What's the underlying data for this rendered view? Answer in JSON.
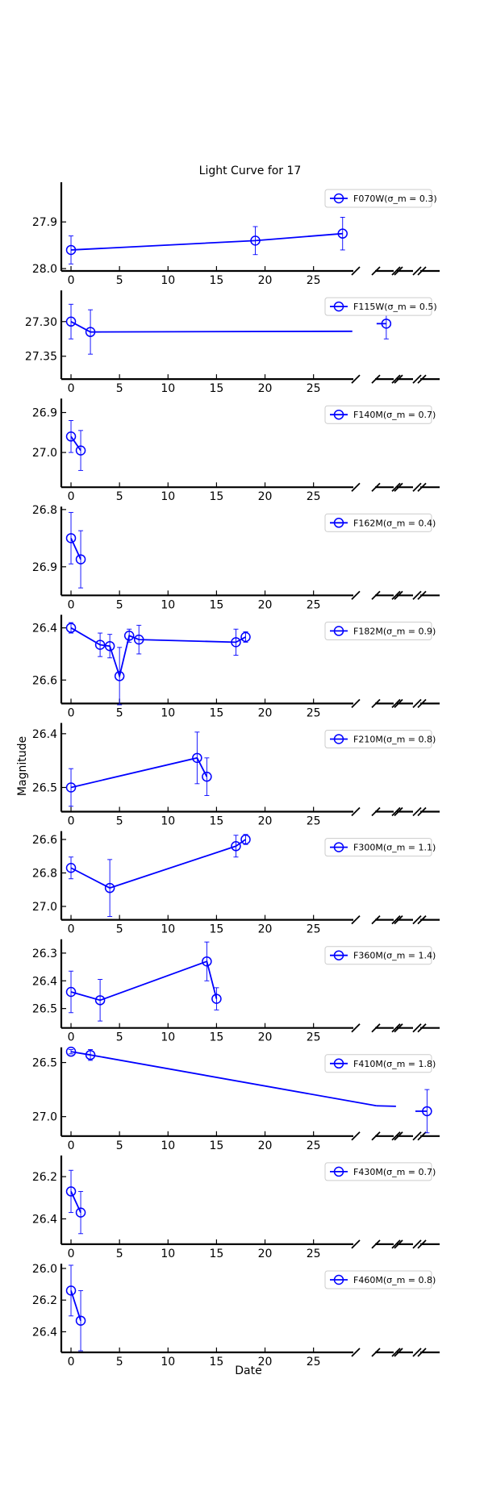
{
  "figure": {
    "title": "Light Curve for 17",
    "xlabel": "Date",
    "ylabel": "Magnitude",
    "line_color": "#0000ff"
  },
  "chart_data": [
    {
      "type": "line",
      "legend": "F070W(σ_m = 0.3)",
      "filter": "F070W",
      "sigma": "0.3",
      "ylim": [
        28.005,
        27.815
      ],
      "yticks": [
        27.9,
        28.0
      ],
      "ytick_labels": [
        "27.9",
        "28.0"
      ],
      "x": [
        0,
        19,
        28
      ],
      "y": [
        27.96,
        27.94,
        27.925
      ],
      "yerr": [
        0.03,
        0.03,
        0.035
      ],
      "broken_segment": null
    },
    {
      "type": "line",
      "legend": "F115W(σ_m = 0.5)",
      "filter": "F115W",
      "sigma": "0.5",
      "ylim": [
        27.383,
        27.255
      ],
      "yticks": [
        27.3,
        27.35
      ],
      "ytick_labels": [
        "27.30",
        "27.35"
      ],
      "x": [
        0,
        2,
        32.5
      ],
      "y": [
        27.3,
        27.315,
        27.303
      ],
      "yerr": [
        0.025,
        0.032,
        0.022
      ],
      "broken_segment": [
        [
          29,
          27.314
        ],
        [
          32.5,
          27.303
        ]
      ]
    },
    {
      "type": "line",
      "legend": "F140M(σ_m = 0.7)",
      "filter": "F140M",
      "sigma": "0.7",
      "ylim": [
        27.087,
        26.865
      ],
      "yticks": [
        26.9,
        27.0
      ],
      "ytick_labels": [
        "26.9",
        "27.0"
      ],
      "x": [
        0,
        1
      ],
      "y": [
        26.96,
        26.995
      ],
      "yerr": [
        0.04,
        0.05
      ],
      "broken_segment": null
    },
    {
      "type": "line",
      "legend": "F162M(σ_m = 0.4)",
      "filter": "F162M",
      "sigma": "0.4",
      "ylim": [
        26.95,
        26.795
      ],
      "yticks": [
        26.8,
        26.9
      ],
      "ytick_labels": [
        "26.8",
        "26.9"
      ],
      "x": [
        0,
        1
      ],
      "y": [
        26.85,
        26.887
      ],
      "yerr": [
        0.045,
        0.05
      ],
      "broken_segment": null
    },
    {
      "type": "line",
      "legend": "F182M(σ_m = 0.9)",
      "filter": "F182M",
      "sigma": "0.9",
      "ylim": [
        26.69,
        26.35
      ],
      "yticks": [
        26.4,
        26.6
      ],
      "ytick_labels": [
        "26.4",
        "26.6"
      ],
      "x": [
        0,
        3,
        4,
        5,
        6,
        7,
        17,
        18
      ],
      "y": [
        26.4,
        26.465,
        26.47,
        26.585,
        26.43,
        26.445,
        26.455,
        26.435
      ],
      "yerr": [
        0.02,
        0.045,
        0.045,
        0.11,
        0.025,
        0.055,
        0.05,
        0.02
      ],
      "broken_segment": null
    },
    {
      "type": "line",
      "legend": "F210M(σ_m = 0.8)",
      "filter": "F210M",
      "sigma": "0.8",
      "ylim": [
        26.545,
        26.38
      ],
      "yticks": [
        26.4,
        26.5
      ],
      "ytick_labels": [
        "26.4",
        "26.5"
      ],
      "x": [
        0,
        13,
        14
      ],
      "y": [
        26.5,
        26.445,
        26.48
      ],
      "yerr": [
        0.035,
        0.048,
        0.035
      ],
      "broken_segment": null
    },
    {
      "type": "line",
      "legend": "F300M(σ_m = 1.1)",
      "filter": "F300M",
      "sigma": "1.1",
      "ylim": [
        27.08,
        26.55
      ],
      "yticks": [
        26.6,
        26.8,
        27.0
      ],
      "ytick_labels": [
        "26.6",
        "26.8",
        "27.0"
      ],
      "x": [
        0,
        4,
        17,
        18
      ],
      "y": [
        26.77,
        26.89,
        26.64,
        26.6
      ],
      "yerr": [
        0.065,
        0.17,
        0.065,
        0.03
      ],
      "broken_segment": null
    },
    {
      "type": "line",
      "legend": "F360M(σ_m = 1.4)",
      "filter": "F360M",
      "sigma": "1.4",
      "ylim": [
        26.57,
        26.25
      ],
      "yticks": [
        26.3,
        26.4,
        26.5
      ],
      "ytick_labels": [
        "26.3",
        "26.4",
        "26.5"
      ],
      "x": [
        0,
        3,
        14,
        15
      ],
      "y": [
        26.44,
        26.47,
        26.33,
        26.465
      ],
      "yerr": [
        0.075,
        0.075,
        0.07,
        0.04
      ],
      "broken_segment": null
    },
    {
      "type": "line",
      "legend": "F410M(σ_m = 1.8)",
      "filter": "F410M",
      "sigma": "1.8",
      "ylim": [
        27.18,
        26.36
      ],
      "yticks": [
        26.5,
        27.0
      ],
      "ytick_labels": [
        "26.5",
        "27.0"
      ],
      "x": [
        0,
        2,
        36.7
      ],
      "y": [
        26.4,
        26.43,
        26.95
      ],
      "yerr": [
        0.02,
        0.05,
        0.2
      ],
      "broken_segment": [
        [
          31.5,
          26.9
        ],
        [
          33.5,
          26.905
        ]
      ]
    },
    {
      "type": "line",
      "legend": "F430M(σ_m = 0.7)",
      "filter": "F430M",
      "sigma": "0.7",
      "ylim": [
        26.52,
        26.1
      ],
      "yticks": [
        26.2,
        26.4
      ],
      "ytick_labels": [
        "26.2",
        "26.4"
      ],
      "x": [
        0,
        1
      ],
      "y": [
        26.27,
        26.37
      ],
      "yerr": [
        0.1,
        0.1
      ],
      "broken_segment": null
    },
    {
      "type": "line",
      "legend": "F460M(σ_m = 0.8)",
      "filter": "F460M",
      "sigma": "0.8",
      "ylim": [
        26.53,
        25.97
      ],
      "yticks": [
        26.0,
        26.2,
        26.4
      ],
      "ytick_labels": [
        "26.0",
        "26.2",
        "26.4"
      ],
      "x": [
        0,
        1
      ],
      "y": [
        26.14,
        26.33
      ],
      "yerr": [
        0.16,
        0.19
      ],
      "broken_segment": null
    }
  ],
  "xaxis": {
    "xlim": [
      -1,
      38
    ],
    "ticks": [
      0,
      5,
      10,
      15,
      20,
      25
    ],
    "tick_labels": [
      "0",
      "5",
      "10",
      "15",
      "20",
      "25"
    ]
  }
}
